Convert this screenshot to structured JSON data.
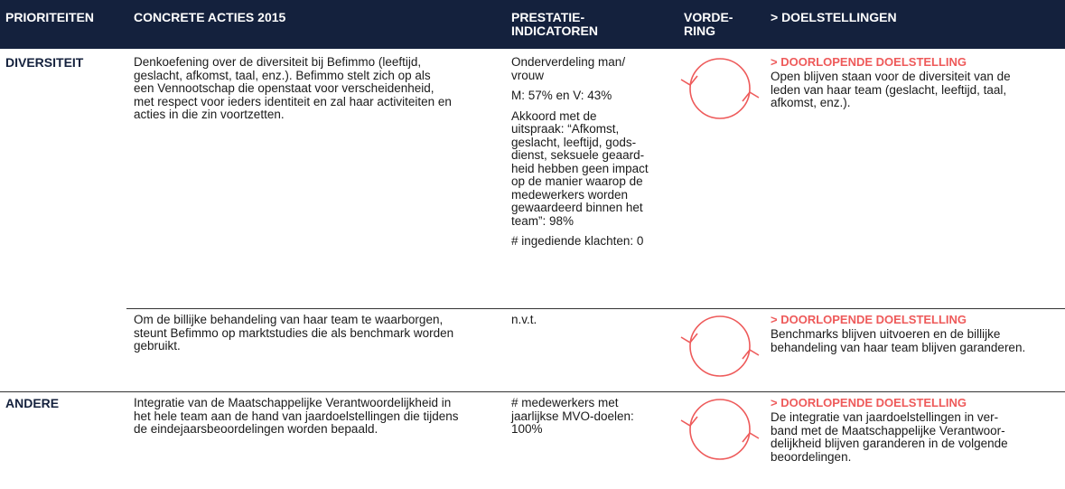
{
  "header": [
    [
      "PRIORITEITEN"
    ],
    [
      "CONCRETE ACTIES 2015"
    ],
    [
      "PRESTATIE-",
      "INDICATOREN"
    ],
    [
      "VORDE-",
      "RING"
    ],
    [
      "> DOELSTELLINGEN"
    ]
  ],
  "rows": [
    {
      "priority": "DIVERSITEIT",
      "action": [
        "Denkoefening over de diversiteit bij Befimmo (leeftijd,",
        "geslacht, afkomst, taal, enz.). Befimmo stelt zich op als",
        "een Vennootschap die openstaat voor verscheidenheid,",
        "met respect voor ieders identiteit en zal haar activiteiten en",
        "acties in die zin voortzetten."
      ],
      "indicators": [
        [
          "Onderverdeling man/",
          "vrouw"
        ],
        [
          "M: 57% en V: 43%"
        ],
        [
          "Akkoord met de",
          "uitspraak: “Afkomst,",
          "geslacht, leeftijd, gods-",
          "dienst, seksuele geaard-",
          "heid hebben geen impact",
          "op de manier waarop de",
          "medewerkers worden",
          "gewaardeerd binnen het",
          "team”: 98%"
        ],
        [
          "# ingediende klachten: 0"
        ]
      ],
      "goal_title": "> DOORLOPENDE DOELSTELLING",
      "goal": [
        "Open blijven staan voor de diversiteit van de",
        "leden van haar team (geslacht, leeftijd, taal,",
        "afkomst, enz.)."
      ]
    },
    {
      "action": [
        "Om de billijke behandeling van haar team te waarborgen,",
        "steunt Befimmo op marktstudies die als benchmark worden",
        "gebruikt."
      ],
      "indicators": [
        [
          "n.v.t."
        ]
      ],
      "goal_title": "> DOORLOPENDE DOELSTELLING",
      "goal": [
        "Benchmarks blijven uitvoeren en de billijke",
        "behandeling van haar team blijven garanderen."
      ]
    },
    {
      "priority": "ANDERE",
      "action": [
        "Integratie van de Maatschappelijke Verantwoordelijkheid in",
        "het hele team aan de hand van jaardoelstellingen die tijdens",
        "de eindejaarsbeoordelingen worden bepaald."
      ],
      "indicators": [
        [
          "# medewerkers met",
          "jaarlijkse MVO-doelen:",
          "100%"
        ]
      ],
      "goal_title": "> DOORLOPENDE DOELSTELLING",
      "goal": [
        "De integratie van jaardoelstellingen in ver-",
        "band met de Maatschappelijke Verantwoor-",
        "delijkheid blijven garanderen in de volgende",
        "beoordelingen."
      ]
    }
  ]
}
